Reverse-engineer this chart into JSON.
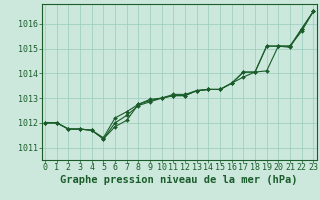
{
  "background_color": "#cce8dc",
  "grid_color": "#99ccbb",
  "line_color": "#1a5c2a",
  "xlabel": "Graphe pression niveau de la mer (hPa)",
  "xlabel_fontsize": 7.5,
  "tick_fontsize": 6,
  "ytick_labels": [
    1011,
    1012,
    1013,
    1014,
    1015,
    1016
  ],
  "ylim": [
    1010.5,
    1016.8
  ],
  "xlim": [
    -0.3,
    23.3
  ],
  "series1": [
    1012.0,
    1012.0,
    1011.75,
    1011.75,
    1011.7,
    1011.35,
    1011.85,
    1012.1,
    1012.75,
    1012.9,
    1013.0,
    1013.1,
    1013.1,
    1013.3,
    1013.35,
    1013.35,
    1013.6,
    1014.05,
    1014.05,
    1015.1,
    1015.1,
    1015.05,
    1015.8,
    1016.5
  ],
  "series2": [
    1012.0,
    1012.0,
    1011.75,
    1011.75,
    1011.7,
    1011.4,
    1012.2,
    1012.45,
    1012.75,
    1012.95,
    1013.0,
    1013.15,
    1013.15,
    1013.3,
    1013.35,
    1013.35,
    1013.6,
    1013.85,
    1014.05,
    1014.1,
    1015.1,
    1015.1,
    1015.8,
    1016.5
  ],
  "series3": [
    1012.0,
    1012.0,
    1011.75,
    1011.75,
    1011.7,
    1011.35,
    1012.0,
    1012.3,
    1012.7,
    1012.85,
    1013.0,
    1013.1,
    1013.1,
    1013.3,
    1013.35,
    1013.35,
    1013.6,
    1014.05,
    1014.05,
    1015.1,
    1015.1,
    1015.1,
    1015.7,
    1016.5
  ]
}
